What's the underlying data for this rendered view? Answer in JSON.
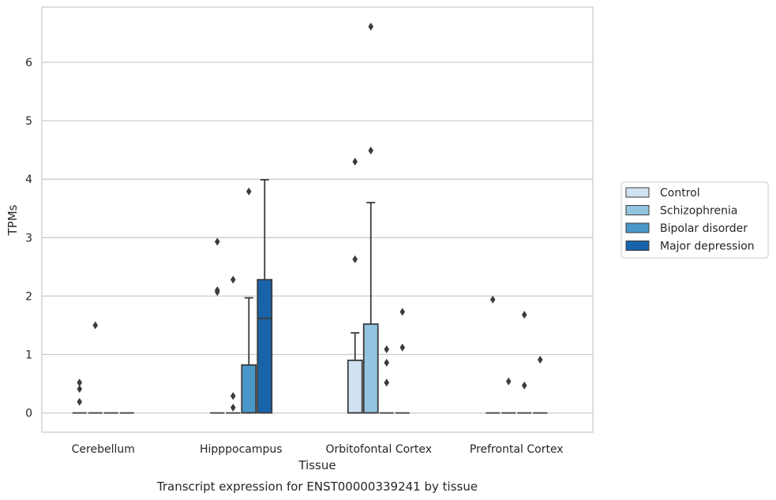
{
  "chart_data": {
    "type": "box",
    "title": "",
    "caption": "Transcript expression for ENST00000339241 by tissue",
    "xlabel": "Tissue",
    "ylabel": "TPMs",
    "ylim": [
      -0.32,
      6.9
    ],
    "yticks": [
      0,
      1,
      2,
      3,
      4,
      5,
      6
    ],
    "grid": true,
    "legend_position": "right",
    "categories": [
      "Cerebellum",
      "Hipppocampus",
      "Orbitofontal Cortex",
      "Prefrontal Cortex"
    ],
    "series": [
      {
        "name": "Control",
        "color": "#d0e1f2",
        "boxes": [
          {
            "q1": 0,
            "median": 0,
            "q3": 0,
            "whisker_low": 0,
            "whisker_high": 0,
            "outliers": [
              0.52,
              0.41,
              0.19
            ]
          },
          {
            "q1": 0,
            "median": 0,
            "q3": 0,
            "whisker_low": 0,
            "whisker_high": 0,
            "outliers": [
              2.93,
              2.1,
              2.07
            ]
          },
          {
            "q1": 0,
            "median": 0,
            "q3": 0.9,
            "whisker_low": 0,
            "whisker_high": 1.37,
            "outliers": [
              4.3,
              2.63
            ]
          },
          {
            "q1": 0,
            "median": 0,
            "q3": 0,
            "whisker_low": 0,
            "whisker_high": 0,
            "outliers": [
              1.94
            ]
          }
        ]
      },
      {
        "name": "Schizophrenia",
        "color": "#94c4df",
        "boxes": [
          {
            "q1": 0,
            "median": 0,
            "q3": 0,
            "whisker_low": 0,
            "whisker_high": 0,
            "outliers": [
              1.5
            ]
          },
          {
            "q1": 0,
            "median": 0,
            "q3": 0,
            "whisker_low": 0,
            "whisker_high": 0,
            "outliers": [
              2.28,
              0.29,
              0.09
            ]
          },
          {
            "q1": 0,
            "median": 0,
            "q3": 1.52,
            "whisker_low": 0,
            "whisker_high": 3.6,
            "outliers": [
              6.61,
              4.49
            ]
          },
          {
            "q1": 0,
            "median": 0,
            "q3": 0,
            "whisker_low": 0,
            "whisker_high": 0,
            "outliers": [
              0.54
            ]
          }
        ]
      },
      {
        "name": "Bipolar disorder",
        "color": "#4a98c9",
        "boxes": [
          {
            "q1": 0,
            "median": 0,
            "q3": 0,
            "whisker_low": 0,
            "whisker_high": 0,
            "outliers": []
          },
          {
            "q1": 0,
            "median": 0,
            "q3": 0.82,
            "whisker_low": 0,
            "whisker_high": 1.97,
            "outliers": [
              3.79
            ]
          },
          {
            "q1": 0,
            "median": 0,
            "q3": 0,
            "whisker_low": 0,
            "whisker_high": 0,
            "outliers": [
              1.09,
              0.86,
              0.52
            ]
          },
          {
            "q1": 0,
            "median": 0,
            "q3": 0,
            "whisker_low": 0,
            "whisker_high": 0,
            "outliers": [
              1.68,
              0.47
            ]
          }
        ]
      },
      {
        "name": "Major depression",
        "color": "#1764ab",
        "boxes": [
          {
            "q1": 0,
            "median": 0,
            "q3": 0,
            "whisker_low": 0,
            "whisker_high": 0,
            "outliers": []
          },
          {
            "q1": 0,
            "median": 1.62,
            "q3": 2.28,
            "whisker_low": 0,
            "whisker_high": 3.99,
            "outliers": []
          },
          {
            "q1": 0,
            "median": 0,
            "q3": 0,
            "whisker_low": 0,
            "whisker_high": 0,
            "outliers": [
              1.73,
              1.12
            ]
          },
          {
            "q1": 0,
            "median": 0,
            "q3": 0,
            "whisker_low": 0,
            "whisker_high": 0,
            "outliers": [
              0.91
            ]
          }
        ]
      }
    ],
    "colors": {
      "grid": "#cccccc",
      "frame": "#cccccc",
      "stroke": "#3b3b3b"
    }
  }
}
